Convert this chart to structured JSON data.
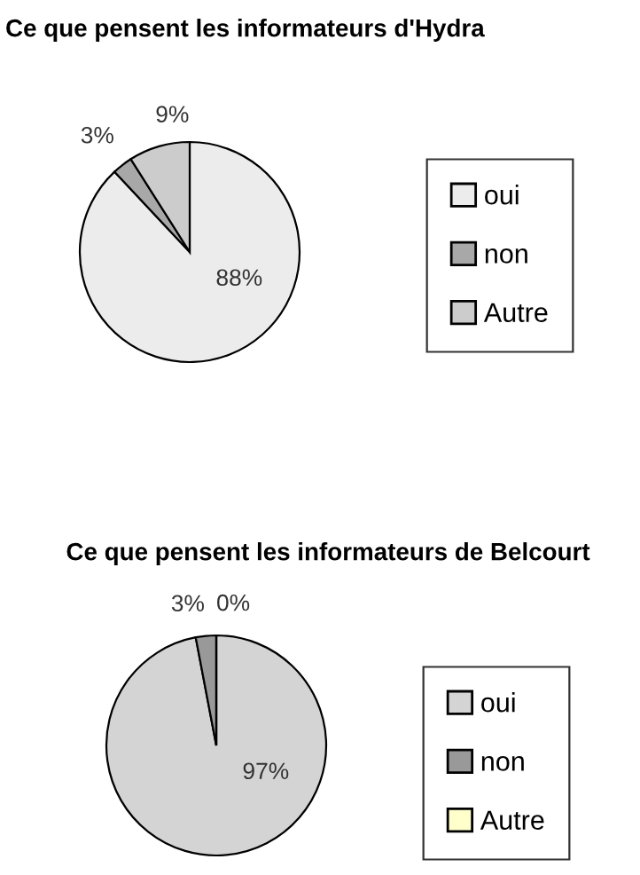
{
  "chart_data": [
    {
      "type": "pie",
      "title": "Ce que pensent les informateurs d'Hydra",
      "categories": [
        "oui",
        "non",
        "Autre"
      ],
      "values": [
        88,
        3,
        9
      ],
      "colors": [
        "#ececec",
        "#a8a8a8",
        "#cccccc"
      ],
      "value_labels": [
        "88%",
        "3%",
        "9%"
      ],
      "legend": "right"
    },
    {
      "type": "pie",
      "title": "Ce que pensent les informateurs de Belcourt",
      "categories": [
        "oui",
        "non",
        "Autre"
      ],
      "values": [
        97,
        3,
        0
      ],
      "colors": [
        "#d4d4d4",
        "#999999",
        "#ffffcc"
      ],
      "value_labels": [
        "97%",
        "3%",
        "0%"
      ],
      "legend": "right"
    }
  ]
}
